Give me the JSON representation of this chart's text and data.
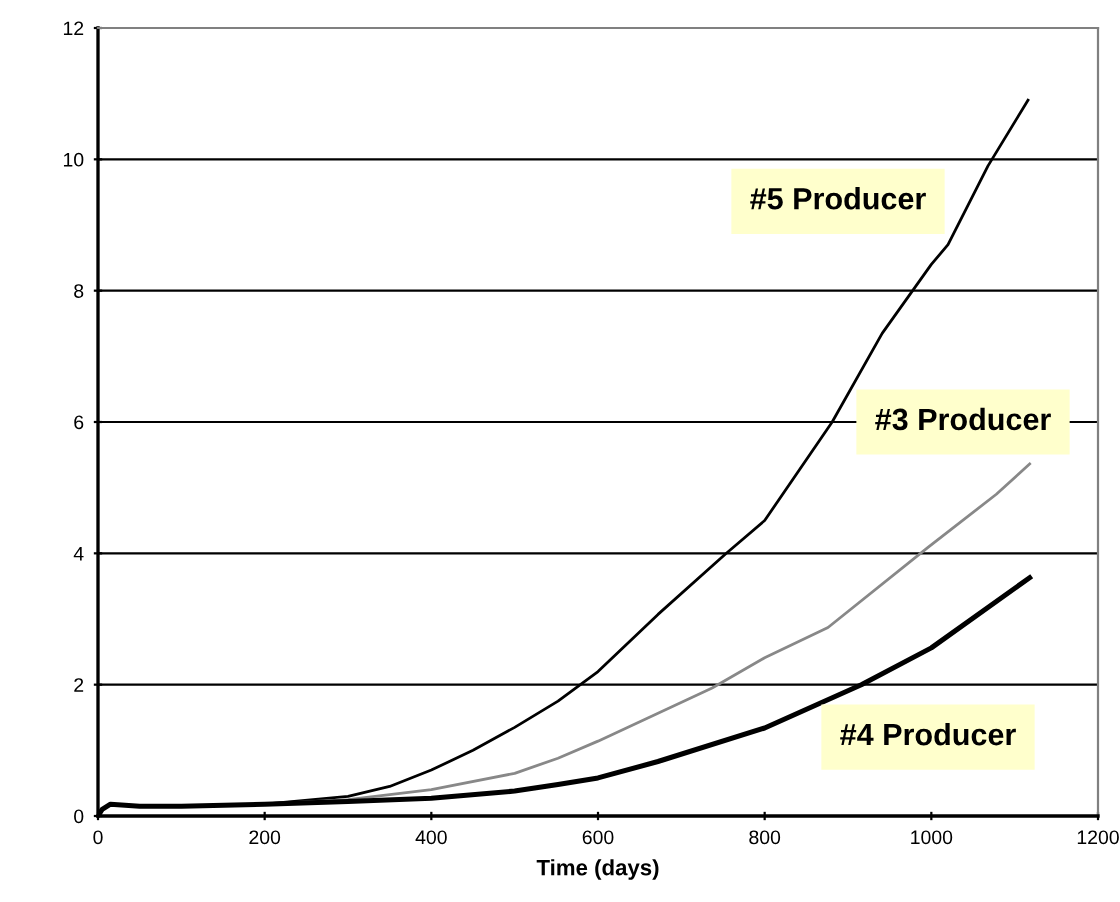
{
  "chart_data": {
    "type": "line",
    "xlabel": "Time (days)",
    "xlim": [
      0,
      1200
    ],
    "xticks": [
      0,
      200,
      400,
      600,
      800,
      1000,
      1200
    ],
    "ylim": [
      0,
      12
    ],
    "yticks": [
      0,
      2,
      4,
      6,
      8,
      10,
      12
    ],
    "grid": "y",
    "marker": "none",
    "line_style": "solid",
    "series": [
      {
        "name": "#5 Producer",
        "color": "#000000",
        "x": [
          0,
          5,
          15,
          50,
          100,
          200,
          300,
          350,
          400,
          450,
          500,
          552,
          600,
          672,
          753,
          800,
          881,
          941,
          1000,
          1020,
          1068,
          1116
        ],
        "values": [
          0,
          0.1,
          0.18,
          0.15,
          0.15,
          0.18,
          0.3,
          0.45,
          0.7,
          1.0,
          1.35,
          1.75,
          2.2,
          3.07,
          3.99,
          4.5,
          6.0,
          7.35,
          8.4,
          8.7,
          9.9,
          10.9
        ]
      },
      {
        "name": "#3 Producer",
        "color": "#888888",
        "x": [
          0,
          5,
          15,
          50,
          100,
          200,
          300,
          400,
          500,
          552,
          600,
          737,
          800,
          876,
          996,
          1078,
          1118
        ],
        "values": [
          0,
          0.1,
          0.18,
          0.15,
          0.15,
          0.18,
          0.25,
          0.4,
          0.65,
          0.88,
          1.14,
          1.95,
          2.41,
          2.87,
          4.09,
          4.9,
          5.36
        ]
      },
      {
        "name": "#4 Producer",
        "color": "#000000",
        "x": [
          0,
          5,
          15,
          50,
          100,
          200,
          300,
          400,
          500,
          552,
          600,
          672,
          800,
          916,
          1000,
          1118
        ],
        "values": [
          0,
          0.1,
          0.18,
          0.15,
          0.15,
          0.18,
          0.22,
          0.27,
          0.38,
          0.48,
          0.58,
          0.83,
          1.34,
          2.0,
          2.56,
          3.63
        ]
      }
    ]
  }
}
